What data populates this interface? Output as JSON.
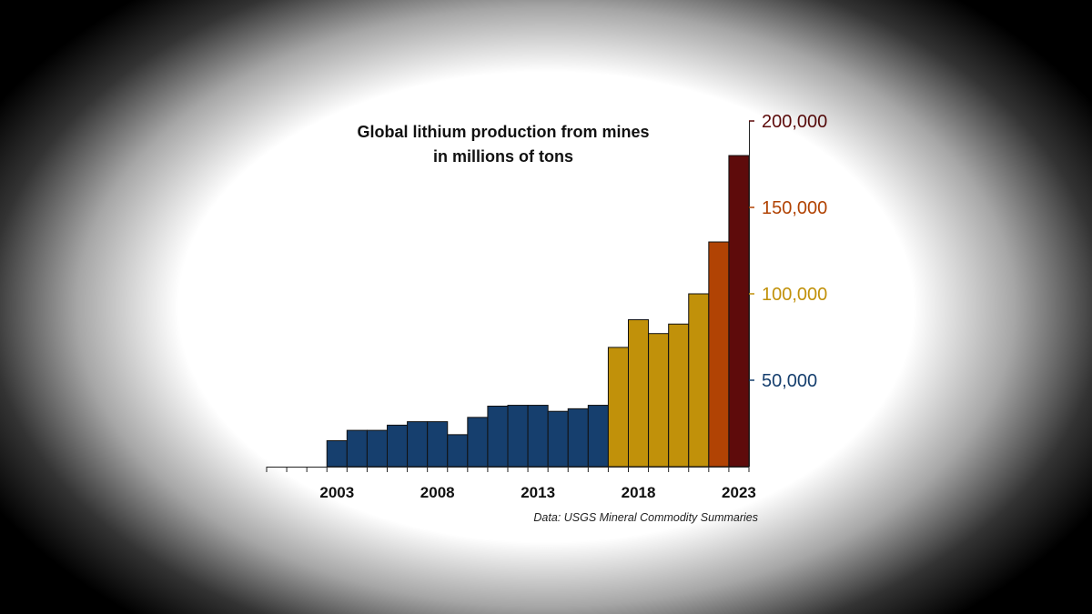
{
  "chart_data": {
    "type": "bar",
    "title": [
      "Global lithium production from mines",
      "in millions of tons"
    ],
    "source": "Data: USGS Mineral Commodity Summaries",
    "categories": [
      "2000",
      "2001",
      "2002",
      "2003",
      "2004",
      "2005",
      "2006",
      "2007",
      "2008",
      "2009",
      "2010",
      "2011",
      "2012",
      "2013",
      "2014",
      "2015",
      "2016",
      "2017",
      "2018",
      "2019",
      "2020",
      "2021",
      "2022",
      "2023"
    ],
    "values": [
      0,
      0,
      0,
      15000,
      21000,
      21000,
      24000,
      26000,
      26000,
      18500,
      28500,
      35000,
      35500,
      35500,
      32000,
      33500,
      35500,
      69000,
      85000,
      77000,
      82500,
      100000,
      130000,
      180000
    ],
    "bar_colors": [
      "#163f6e",
      "#163f6e",
      "#163f6e",
      "#163f6e",
      "#163f6e",
      "#163f6e",
      "#163f6e",
      "#163f6e",
      "#163f6e",
      "#163f6e",
      "#163f6e",
      "#163f6e",
      "#163f6e",
      "#163f6e",
      "#163f6e",
      "#163f6e",
      "#163f6e",
      "#c1910a",
      "#c1910a",
      "#c1910a",
      "#c1910a",
      "#c1910a",
      "#b14304",
      "#5e0b0b"
    ],
    "x_tick_labels": [
      "2003",
      "2008",
      "2013",
      "2018",
      "2023"
    ],
    "y_axis": {
      "position": "right",
      "ylim": [
        0,
        200000
      ],
      "ticks": [
        {
          "value": 50000,
          "label": "50,000",
          "color": "#163f6e"
        },
        {
          "value": 100000,
          "label": "100,000",
          "color": "#c1910a"
        },
        {
          "value": 150000,
          "label": "150,000",
          "color": "#b14304"
        },
        {
          "value": 200000,
          "label": "200,000",
          "color": "#5e0b0b"
        }
      ]
    },
    "grid": false,
    "legend": "none"
  },
  "colors": {
    "bar_outline": "#111111",
    "axis": "#222222",
    "background": "#ffffff",
    "vignette": "#000000"
  }
}
